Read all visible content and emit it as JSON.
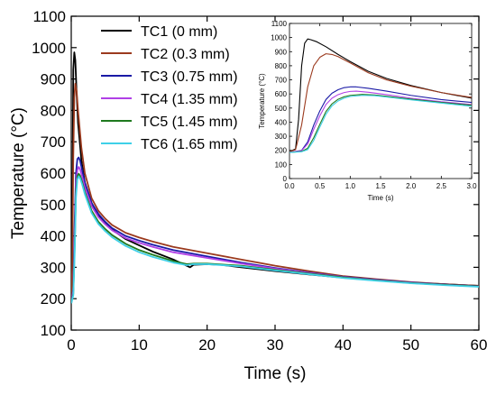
{
  "chart_data": [
    {
      "type": "line",
      "xlabel": "Time (s)",
      "ylabel": "Temperature (°C)",
      "xlim": [
        0,
        60
      ],
      "ylim": [
        100,
        1100
      ],
      "xticks": [
        0,
        10,
        20,
        30,
        40,
        50,
        60
      ],
      "yticks": [
        100,
        200,
        300,
        400,
        500,
        600,
        700,
        800,
        900,
        1000,
        1100
      ],
      "legend_position": "top-left",
      "grid": false,
      "series": [
        {
          "name": "TC1 (0 mm)",
          "color": "#000000",
          "x": [
            0,
            0.15,
            0.3,
            0.45,
            0.6,
            0.8,
            1,
            1.5,
            2,
            3,
            4,
            5,
            6,
            8,
            10,
            12,
            15,
            17,
            17.5,
            18,
            20,
            22,
            25,
            30,
            35,
            40,
            45,
            50,
            55,
            60
          ],
          "y": [
            185,
            420,
            930,
            985,
            960,
            850,
            760,
            640,
            570,
            505,
            465,
            440,
            420,
            390,
            370,
            350,
            325,
            305,
            300,
            308,
            310,
            308,
            300,
            288,
            277,
            267,
            258,
            251,
            246,
            241
          ]
        },
        {
          "name": "TC2 (0.3 mm)",
          "color": "#9b3a1e",
          "x": [
            0,
            0.15,
            0.3,
            0.45,
            0.6,
            0.8,
            1,
            1.5,
            2,
            3,
            4,
            5,
            6,
            8,
            10,
            12,
            15,
            20,
            25,
            30,
            35,
            40,
            45,
            50,
            55,
            60
          ],
          "y": [
            185,
            300,
            650,
            840,
            885,
            860,
            800,
            680,
            600,
            520,
            480,
            455,
            435,
            410,
            395,
            382,
            365,
            345,
            325,
            305,
            288,
            272,
            262,
            253,
            246,
            241
          ]
        },
        {
          "name": "TC3 (0.75 mm)",
          "color": "#1a1aa6",
          "x": [
            0,
            0.3,
            0.5,
            0.7,
            0.9,
            1.1,
            1.3,
            1.6,
            2,
            3,
            4,
            5,
            6,
            8,
            10,
            12,
            15,
            20,
            25,
            30,
            35,
            40,
            45,
            50,
            55,
            60
          ],
          "y": [
            185,
            230,
            440,
            600,
            645,
            650,
            640,
            610,
            570,
            505,
            470,
            445,
            425,
            400,
            385,
            372,
            355,
            335,
            315,
            298,
            283,
            270,
            260,
            252,
            245,
            240
          ]
        },
        {
          "name": "TC4 (1.35 mm)",
          "color": "#b040e6",
          "x": [
            0,
            0.3,
            0.5,
            0.7,
            0.9,
            1.1,
            1.3,
            1.6,
            2,
            3,
            4,
            5,
            6,
            8,
            10,
            12,
            15,
            20,
            25,
            30,
            35,
            40,
            45,
            50,
            55,
            60
          ],
          "y": [
            185,
            225,
            400,
            565,
            610,
            620,
            612,
            590,
            555,
            495,
            460,
            437,
            418,
            393,
            378,
            365,
            348,
            330,
            312,
            296,
            282,
            269,
            259,
            251,
            244,
            239
          ]
        },
        {
          "name": "TC5 (1.45 mm)",
          "color": "#1f7a1f",
          "x": [
            0,
            0.3,
            0.5,
            0.7,
            0.9,
            1.1,
            1.3,
            1.6,
            2,
            3,
            4,
            5,
            6,
            8,
            10,
            12,
            15,
            17,
            18,
            20,
            25,
            30,
            35,
            40,
            45,
            50,
            55,
            60
          ],
          "y": [
            185,
            215,
            360,
            540,
            590,
            598,
            592,
            572,
            540,
            480,
            445,
            422,
            403,
            375,
            355,
            340,
            320,
            310,
            312,
            312,
            305,
            292,
            280,
            268,
            258,
            250,
            244,
            239
          ]
        },
        {
          "name": "TC6 (1.65 mm)",
          "color": "#3fd0e8",
          "x": [
            0,
            0.3,
            0.5,
            0.7,
            0.9,
            1.1,
            1.3,
            1.6,
            2,
            3,
            4,
            5,
            6,
            8,
            10,
            12,
            15,
            17,
            18,
            20,
            25,
            30,
            35,
            40,
            45,
            50,
            55,
            60
          ],
          "y": [
            185,
            210,
            340,
            525,
            580,
            590,
            584,
            565,
            533,
            473,
            438,
            415,
            396,
            368,
            348,
            333,
            315,
            307,
            310,
            310,
            303,
            290,
            278,
            266,
            257,
            249,
            243,
            238
          ]
        }
      ]
    },
    {
      "type": "line",
      "xlabel": "Time (s)",
      "ylabel": "Temperature (°C)",
      "xlim": [
        0,
        3
      ],
      "ylim": [
        0,
        1100
      ],
      "xticks": [
        "0.0",
        "0.5",
        "1.0",
        "1.5",
        "2.0",
        "2.5",
        "3.0"
      ],
      "yticks": [
        0,
        100,
        200,
        300,
        400,
        500,
        600,
        700,
        800,
        900,
        1000,
        1100
      ],
      "grid": false,
      "series": [
        {
          "color": "#000000",
          "x": [
            0,
            0.1,
            0.15,
            0.2,
            0.25,
            0.3,
            0.35,
            0.45,
            0.6,
            0.8,
            1,
            1.3,
            1.6,
            2,
            2.5,
            3
          ],
          "y": [
            190,
            210,
            420,
            800,
            960,
            990,
            985,
            970,
            935,
            880,
            830,
            760,
            710,
            660,
            610,
            570
          ]
        },
        {
          "color": "#9b3a1e",
          "x": [
            0,
            0.1,
            0.2,
            0.3,
            0.4,
            0.5,
            0.6,
            0.7,
            0.8,
            1,
            1.3,
            1.6,
            2,
            2.5,
            3
          ],
          "y": [
            190,
            205,
            380,
            650,
            800,
            860,
            885,
            880,
            865,
            820,
            750,
            700,
            655,
            610,
            575
          ]
        },
        {
          "color": "#1a1aa6",
          "x": [
            0,
            0.2,
            0.3,
            0.4,
            0.5,
            0.6,
            0.7,
            0.8,
            0.9,
            1,
            1.1,
            1.3,
            1.6,
            2,
            2.5,
            3
          ],
          "y": [
            185,
            200,
            260,
            380,
            480,
            560,
            605,
            630,
            645,
            650,
            650,
            640,
            620,
            590,
            560,
            540
          ]
        },
        {
          "color": "#b040e6",
          "x": [
            0,
            0.2,
            0.3,
            0.4,
            0.5,
            0.6,
            0.7,
            0.8,
            0.9,
            1,
            1.1,
            1.3,
            1.6,
            2,
            2.5,
            3
          ],
          "y": [
            185,
            198,
            245,
            350,
            445,
            525,
            570,
            595,
            610,
            618,
            620,
            612,
            595,
            570,
            545,
            525
          ]
        },
        {
          "color": "#1f7a1f",
          "x": [
            0,
            0.2,
            0.3,
            0.4,
            0.5,
            0.6,
            0.7,
            0.8,
            0.9,
            1,
            1.2,
            1.4,
            1.6,
            2,
            2.5,
            3
          ],
          "y": [
            185,
            192,
            215,
            290,
            385,
            475,
            530,
            562,
            580,
            590,
            597,
            593,
            583,
            563,
            540,
            520
          ]
        },
        {
          "color": "#3fd0e8",
          "x": [
            0,
            0.2,
            0.3,
            0.4,
            0.5,
            0.6,
            0.7,
            0.8,
            0.9,
            1,
            1.2,
            1.4,
            1.6,
            2,
            2.5,
            3
          ],
          "y": [
            185,
            190,
            205,
            270,
            365,
            455,
            515,
            550,
            570,
            582,
            590,
            588,
            578,
            558,
            535,
            512
          ]
        }
      ]
    }
  ]
}
